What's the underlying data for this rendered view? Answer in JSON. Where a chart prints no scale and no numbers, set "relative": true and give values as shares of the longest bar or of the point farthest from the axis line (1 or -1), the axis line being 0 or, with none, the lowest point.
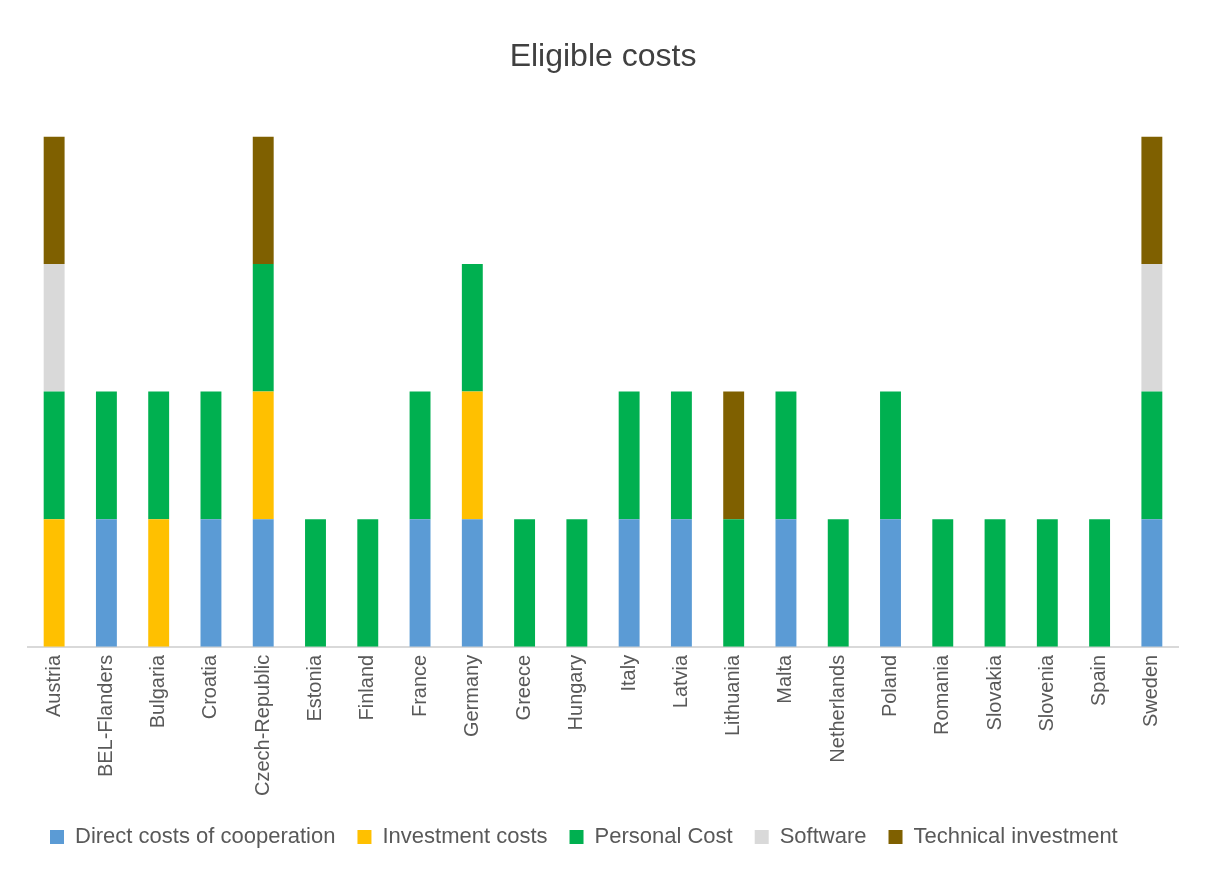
{
  "chart_data": {
    "type": "bar",
    "title": "Eligible costs",
    "stacked": true,
    "relative": true,
    "grid": false,
    "legend": "bottom",
    "categories": [
      "Austria",
      "BEL-Flanders",
      "Bulgaria",
      "Croatia",
      "Czech-Republic",
      "Estonia",
      "Finland",
      "France",
      "Germany",
      "Greece",
      "Hungary",
      "Italy",
      "Latvia",
      "Lithuania",
      "Malta",
      "Netherlands",
      "Poland",
      "Romania",
      "Slovakia",
      "Slovenia",
      "Spain",
      "Sweden"
    ],
    "series": [
      {
        "name": "Direct costs of cooperation",
        "color": "#5b9bd5",
        "values": [
          null,
          0.25,
          null,
          0.25,
          0.25,
          null,
          null,
          0.25,
          0.25,
          null,
          null,
          0.25,
          0.25,
          null,
          0.25,
          null,
          0.25,
          null,
          null,
          null,
          null,
          0.25
        ]
      },
      {
        "name": "Investment costs",
        "color": "#ffc000",
        "values": [
          0.25,
          null,
          0.25,
          null,
          0.25,
          null,
          null,
          null,
          0.25,
          null,
          null,
          null,
          null,
          null,
          null,
          null,
          null,
          null,
          null,
          null,
          null,
          null
        ]
      },
      {
        "name": "Personal Cost",
        "color": "#00b050",
        "values": [
          0.25,
          0.25,
          0.25,
          0.25,
          0.25,
          0.25,
          0.25,
          0.25,
          0.25,
          0.25,
          0.25,
          0.25,
          0.25,
          0.25,
          0.25,
          0.25,
          0.25,
          0.25,
          0.25,
          0.25,
          0.25,
          0.25
        ]
      },
      {
        "name": "Software",
        "color": "#d9d9d9",
        "values": [
          0.25,
          null,
          null,
          null,
          null,
          null,
          null,
          null,
          null,
          null,
          null,
          null,
          null,
          null,
          null,
          null,
          null,
          null,
          null,
          null,
          null,
          0.25
        ]
      },
      {
        "name": "Technical investment",
        "color": "#7f6000",
        "values": [
          0.25,
          null,
          null,
          null,
          0.25,
          null,
          null,
          null,
          null,
          null,
          null,
          null,
          null,
          0.25,
          null,
          null,
          null,
          null,
          null,
          null,
          null,
          0.25
        ]
      }
    ]
  }
}
